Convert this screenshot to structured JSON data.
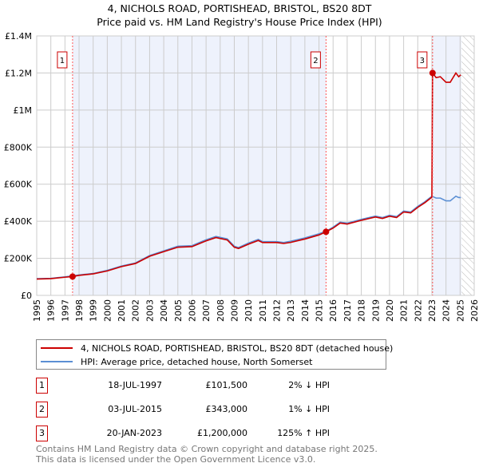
{
  "chart_data": {
    "type": "line",
    "title": "4, NICHOLS ROAD, PORTISHEAD, BRISTOL, BS20 8DT",
    "subtitle": "Price paid vs. HM Land Registry's House Price Index (HPI)",
    "xlim": [
      1995,
      2026
    ],
    "ylim": [
      0,
      1400000
    ],
    "x_ticks": [
      "1995",
      "1996",
      "1997",
      "1998",
      "1999",
      "2000",
      "2001",
      "2002",
      "2003",
      "2004",
      "2005",
      "2006",
      "2007",
      "2008",
      "2009",
      "2010",
      "2011",
      "2012",
      "2013",
      "2014",
      "2015",
      "2016",
      "2017",
      "2018",
      "2019",
      "2020",
      "2021",
      "2022",
      "2023",
      "2024",
      "2025",
      "2026"
    ],
    "y_ticks": [
      {
        "v": 0,
        "label": "£0"
      },
      {
        "v": 200000,
        "label": "£200K"
      },
      {
        "v": 400000,
        "label": "£400K"
      },
      {
        "v": 600000,
        "label": "£600K"
      },
      {
        "v": 800000,
        "label": "£800K"
      },
      {
        "v": 1000000,
        "label": "£1M"
      },
      {
        "v": 1200000,
        "label": "£1.2M"
      },
      {
        "v": 1400000,
        "label": "£1.4M"
      }
    ],
    "grid": true,
    "shaded_periods": [
      [
        1997.54,
        2015.5
      ],
      [
        2023.05,
        2025.1
      ]
    ],
    "data_end": 2025.1,
    "series": [
      {
        "name": "4, NICHOLS ROAD, PORTISHEAD, BRISTOL, BS20 8DT (detached house)",
        "color": "#cc0000",
        "x": [
          1995,
          1996,
          1997,
          1997.54,
          1998,
          1999,
          2000,
          2001,
          2002,
          2003,
          2004,
          2005,
          2006,
          2007,
          2007.7,
          2008.5,
          2009,
          2009.3,
          2010,
          2010.7,
          2011,
          2012,
          2012.5,
          2013,
          2014,
          2015,
          2015.5,
          2016,
          2016.5,
          2017,
          2018,
          2019,
          2019.5,
          2020,
          2020.5,
          2021,
          2021.5,
          2022,
          2022.5,
          2023.0,
          2023.05,
          2023.3,
          2023.6,
          2024,
          2024.3,
          2024.7,
          2024.9,
          2025.05
        ],
        "y": [
          88000,
          90000,
          98000,
          101500,
          108000,
          116000,
          132000,
          155000,
          172000,
          211000,
          236000,
          260000,
          263000,
          294000,
          312000,
          299000,
          260000,
          253000,
          276000,
          296000,
          285000,
          285000,
          280000,
          286000,
          304000,
          326000,
          343000,
          363000,
          390000,
          385000,
          405000,
          423000,
          415000,
          427000,
          420000,
          450000,
          445000,
          475000,
          500000,
          530000,
          1200000,
          1175000,
          1180000,
          1150000,
          1150000,
          1200000,
          1180000,
          1190000
        ]
      },
      {
        "name": "HPI: Average price, detached house, North Somerset",
        "color": "#5b8fd4",
        "x": [
          1995,
          1996,
          1997,
          1998,
          1999,
          2000,
          2001,
          2002,
          2003,
          2004,
          2005,
          2006,
          2007,
          2007.7,
          2008.5,
          2009,
          2009.3,
          2010,
          2010.7,
          2011,
          2012,
          2012.5,
          2013,
          2014,
          2015,
          2015.5,
          2016,
          2016.5,
          2017,
          2018,
          2019,
          2019.5,
          2020,
          2020.5,
          2021,
          2021.5,
          2022,
          2022.5,
          2023,
          2023.3,
          2023.6,
          2024,
          2024.3,
          2024.7,
          2024.9,
          2025.05
        ],
        "y": [
          90000,
          92000,
          100000,
          110000,
          118000,
          135000,
          158000,
          175000,
          215000,
          240000,
          265000,
          268000,
          300000,
          318000,
          305000,
          265000,
          258000,
          282000,
          302000,
          290000,
          290000,
          285000,
          292000,
          310000,
          332000,
          346000,
          368000,
          395000,
          390000,
          410000,
          428000,
          420000,
          432000,
          425000,
          455000,
          450000,
          480000,
          505000,
          535000,
          525000,
          525000,
          510000,
          510000,
          535000,
          528000,
          528000
        ]
      }
    ],
    "sales": [
      {
        "id": "1",
        "x": 1997.54,
        "y": 101500,
        "date": "18-JUL-1997",
        "price": "£101,500",
        "hpi": "2% ↓ HPI"
      },
      {
        "id": "2",
        "x": 2015.5,
        "y": 343000,
        "date": "03-JUL-2015",
        "price": "£343,000",
        "hpi": "1% ↓ HPI"
      },
      {
        "id": "3",
        "x": 2023.05,
        "y": 1200000,
        "date": "20-JAN-2023",
        "price": "£1,200,000",
        "hpi": "125% ↑ HPI"
      }
    ]
  },
  "legend": {
    "property": "4, NICHOLS ROAD, PORTISHEAD, BRISTOL, BS20 8DT (detached house)",
    "hpi": "HPI: Average price, detached house, North Somerset"
  },
  "footer": {
    "line1": "Contains HM Land Registry data © Crown copyright and database right 2025.",
    "line2": "This data is licensed under the Open Government Licence v3.0."
  }
}
